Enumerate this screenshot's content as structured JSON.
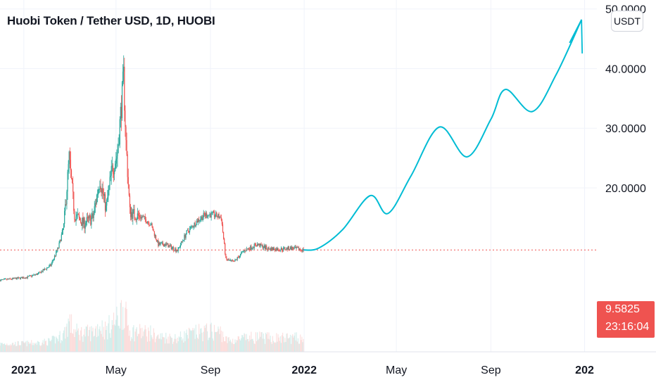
{
  "header": {
    "title": "Huobi Token / Tether USD, 1D, HUOBI",
    "currency_label": "USDT"
  },
  "price_tag": {
    "last_price": "9.5825",
    "countdown": "23:16:04"
  },
  "colors": {
    "up": "#26a69a",
    "down": "#ef5350",
    "projection": "#00bcd4",
    "grid": "#f0f3fa",
    "axis_text": "#131722",
    "price_line": "#ef5350"
  },
  "chart_data": {
    "type": "candlestick",
    "title": "Huobi Token / Tether USD, 1D, HUOBI",
    "y_axis_ticks": [
      {
        "value": 20,
        "label": "20.0000"
      },
      {
        "value": 30,
        "label": "30.0000"
      },
      {
        "value": 40,
        "label": "40.0000"
      },
      {
        "value": 50,
        "label": "50.0000"
      }
    ],
    "ylim": [
      -7.5,
      51.5
    ],
    "x_axis_ticks": [
      {
        "date": "2021-01-01",
        "label": "2021",
        "bold": true
      },
      {
        "date": "2021-05-01",
        "label": "May",
        "bold": false
      },
      {
        "date": "2021-09-01",
        "label": "Sep",
        "bold": false
      },
      {
        "date": "2022-01-01",
        "label": "2022",
        "bold": true
      },
      {
        "date": "2022-05-01",
        "label": "May",
        "bold": false
      },
      {
        "date": "2022-09-01",
        "label": "Sep",
        "bold": false
      },
      {
        "date": "2023-01-01",
        "label": "202",
        "bold": true
      }
    ],
    "last_price": 9.5825,
    "price_series": [
      {
        "date": "2020-12-01",
        "close": 4.5
      },
      {
        "date": "2020-12-15",
        "close": 4.7
      },
      {
        "date": "2021-01-05",
        "close": 5.0
      },
      {
        "date": "2021-01-20",
        "close": 5.6
      },
      {
        "date": "2021-02-05",
        "close": 7.0
      },
      {
        "date": "2021-02-15",
        "close": 10.0
      },
      {
        "date": "2021-02-22",
        "close": 13.5
      },
      {
        "date": "2021-03-01",
        "close": 25.0
      },
      {
        "date": "2021-03-08",
        "close": 15.5
      },
      {
        "date": "2021-03-20",
        "close": 14.0
      },
      {
        "date": "2021-04-01",
        "close": 15.0
      },
      {
        "date": "2021-04-10",
        "close": 21.5
      },
      {
        "date": "2021-04-18",
        "close": 16.5
      },
      {
        "date": "2021-04-25",
        "close": 22.5
      },
      {
        "date": "2021-05-03",
        "close": 26.0
      },
      {
        "date": "2021-05-08",
        "close": 34.0
      },
      {
        "date": "2021-05-11",
        "close": 38.5
      },
      {
        "date": "2021-05-14",
        "close": 27.5
      },
      {
        "date": "2021-05-19",
        "close": 16.0
      },
      {
        "date": "2021-05-25",
        "close": 15.5
      },
      {
        "date": "2021-06-05",
        "close": 15.0
      },
      {
        "date": "2021-06-15",
        "close": 14.0
      },
      {
        "date": "2021-06-25",
        "close": 10.5
      },
      {
        "date": "2021-07-05",
        "close": 10.5
      },
      {
        "date": "2021-07-20",
        "close": 9.5
      },
      {
        "date": "2021-08-01",
        "close": 12.5
      },
      {
        "date": "2021-08-15",
        "close": 14.5
      },
      {
        "date": "2021-08-25",
        "close": 15.5
      },
      {
        "date": "2021-09-05",
        "close": 15.5
      },
      {
        "date": "2021-09-15",
        "close": 15.0
      },
      {
        "date": "2021-09-21",
        "close": 8.0
      },
      {
        "date": "2021-10-01",
        "close": 7.5
      },
      {
        "date": "2021-10-15",
        "close": 9.5
      },
      {
        "date": "2021-11-01",
        "close": 10.5
      },
      {
        "date": "2021-11-15",
        "close": 9.8
      },
      {
        "date": "2021-12-01",
        "close": 9.7
      },
      {
        "date": "2021-12-15",
        "close": 9.9
      },
      {
        "date": "2021-12-31",
        "close": 9.58
      }
    ],
    "projection": [
      {
        "date": "2021-12-31",
        "value": 9.58
      },
      {
        "date": "2022-01-20",
        "value": 9.9
      },
      {
        "date": "2022-02-20",
        "value": 13.0
      },
      {
        "date": "2022-03-28",
        "value": 18.7
      },
      {
        "date": "2022-04-20",
        "value": 15.7
      },
      {
        "date": "2022-05-20",
        "value": 22.0
      },
      {
        "date": "2022-06-26",
        "value": 30.2
      },
      {
        "date": "2022-08-01",
        "value": 25.2
      },
      {
        "date": "2022-09-01",
        "value": 31.5
      },
      {
        "date": "2022-09-20",
        "value": 36.5
      },
      {
        "date": "2022-10-25",
        "value": 32.8
      },
      {
        "date": "2022-11-25",
        "value": 39.0
      },
      {
        "date": "2022-12-28",
        "value": 48.2
      }
    ]
  }
}
